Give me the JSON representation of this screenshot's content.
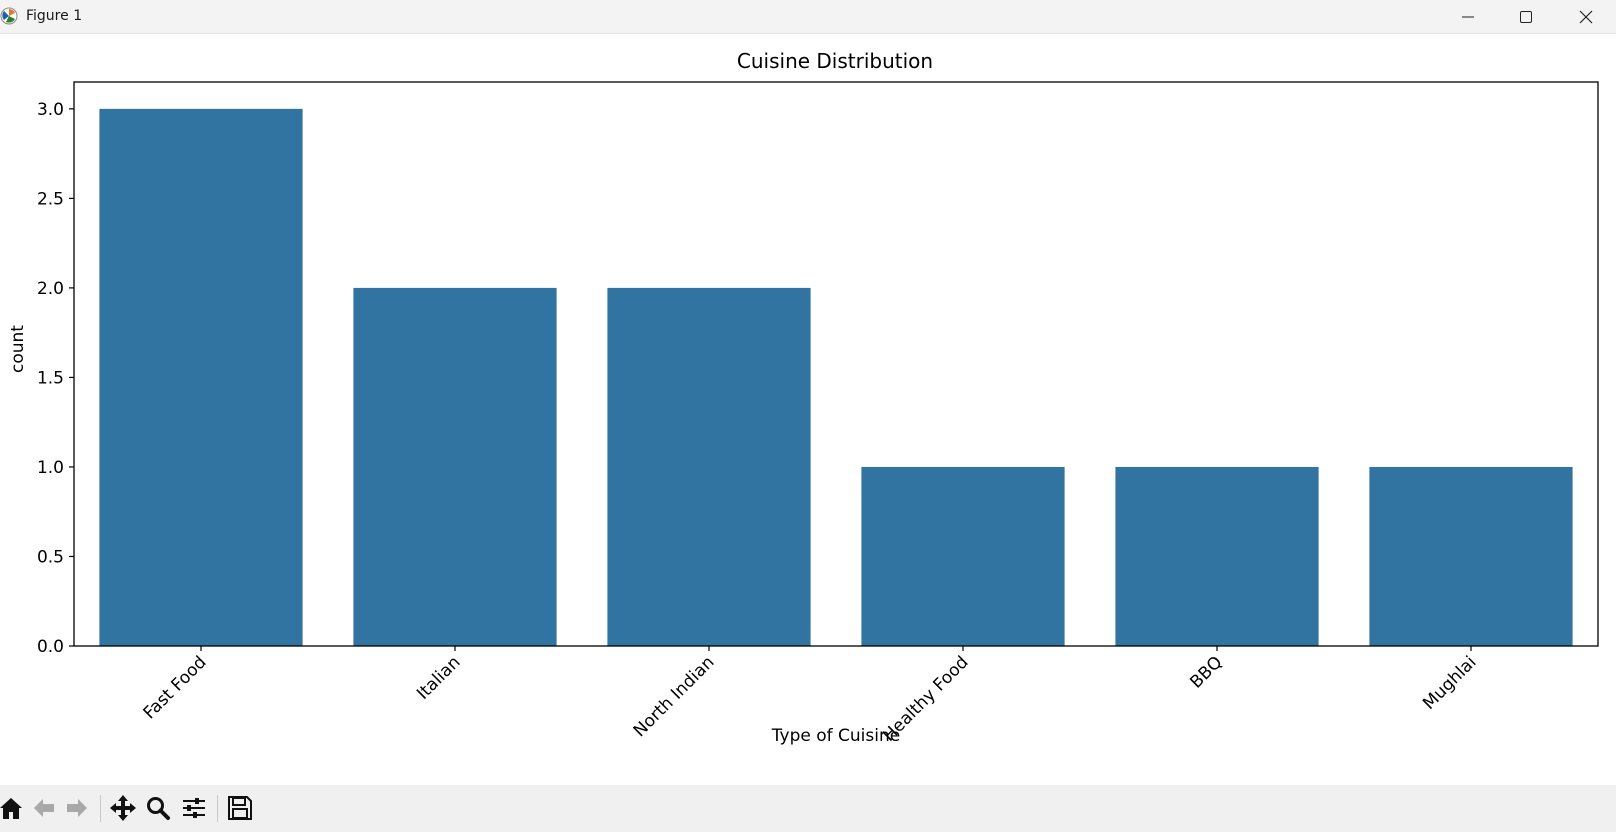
{
  "window": {
    "title": "Figure 1",
    "icons": [
      "matplotlib-icon",
      "minimize-icon",
      "maximize-icon",
      "close-icon"
    ]
  },
  "toolbar": {
    "icons": [
      "home-icon",
      "back-icon",
      "forward-icon",
      "pan-icon",
      "zoom-icon",
      "configure-subplots-icon",
      "save-icon"
    ]
  },
  "colors": {
    "bar": "#3274a1",
    "axes": "#000000",
    "toolbar_bg": "#f0f0f0"
  },
  "chart_data": {
    "type": "bar",
    "title": "Cuisine Distribution",
    "xlabel": "Type of Cuisine",
    "ylabel": "count",
    "categories": [
      "Fast Food",
      "Italian",
      "North Indian",
      "Healthy Food",
      "BBQ",
      "Mughlai"
    ],
    "values": [
      3,
      2,
      2,
      1,
      1,
      1
    ],
    "ylim": [
      0,
      3.15
    ],
    "yticks": [
      "0.0",
      "0.5",
      "1.0",
      "1.5",
      "2.0",
      "2.5",
      "3.0"
    ],
    "xtick_rotation": 45,
    "grid": false,
    "legend": "none"
  }
}
